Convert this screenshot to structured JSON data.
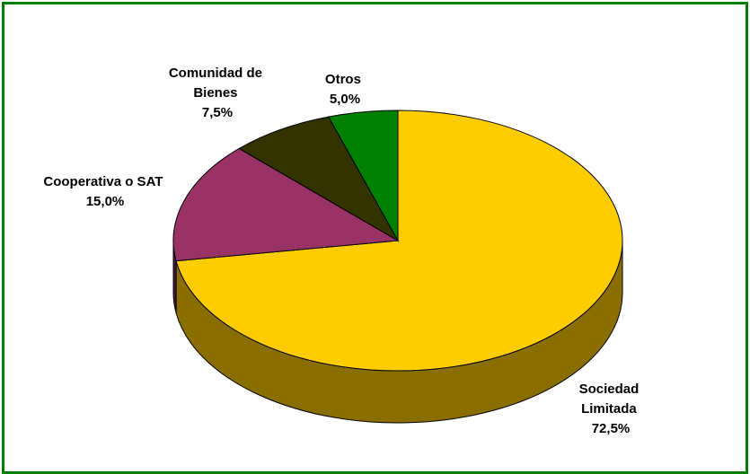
{
  "chart_data": {
    "type": "pie",
    "title": "",
    "slices": [
      {
        "label_lines": [
          "Sociedad",
          "Limitada"
        ],
        "percent_text": "72,5%",
        "value": 72.5,
        "color": "#FFCC00",
        "side_color": "#8A6E00"
      },
      {
        "label_lines": [
          "Cooperativa o SAT"
        ],
        "percent_text": "15,0%",
        "value": 15.0,
        "color": "#993366",
        "side_color": "#4D1A33"
      },
      {
        "label_lines": [
          "Comunidad de",
          "Bienes"
        ],
        "percent_text": "7,5%",
        "value": 7.5,
        "color": "#333300",
        "side_color": "#1A1A00"
      },
      {
        "label_lines": [
          "Otros"
        ],
        "percent_text": "5,0%",
        "value": 5.0,
        "color": "#008000",
        "side_color": "#004000"
      }
    ],
    "frame_color": "#008000",
    "three_d": true,
    "legend": "none"
  }
}
